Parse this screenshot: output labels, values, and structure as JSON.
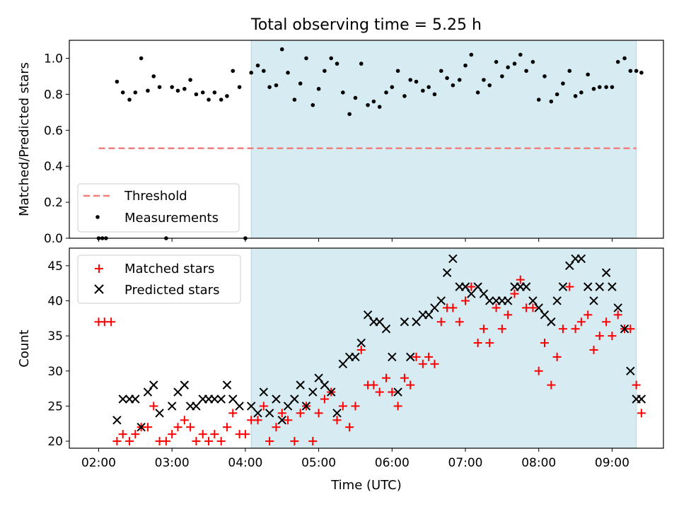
{
  "chart_data": [
    {
      "type": "scatter",
      "title": "Total observing time = 5.25 h",
      "xlabel": "",
      "ylabel": "Matched/Predicted stars",
      "xlim": [
        1.6,
        9.7
      ],
      "ylim": [
        0,
        1.1
      ],
      "y_ticks": [
        0.0,
        0.2,
        0.4,
        0.6,
        0.8,
        1.0
      ],
      "y_tick_labels": [
        "0.0",
        "0.2",
        "0.4",
        "0.6",
        "0.8",
        "1.0"
      ],
      "shaded_interval": [
        4.08,
        9.33
      ],
      "threshold": {
        "label": "Threshold",
        "value": 0.5,
        "x": [
          2.0,
          9.33
        ],
        "color": "#f08080"
      },
      "series": [
        {
          "name": "Measurements",
          "color": "#000000",
          "x": [
            2.0,
            2.05,
            2.1,
            2.25,
            2.33,
            2.42,
            2.5,
            2.58,
            2.67,
            2.75,
            2.83,
            2.92,
            3.0,
            3.08,
            3.17,
            3.25,
            3.33,
            3.42,
            3.5,
            3.58,
            3.67,
            3.75,
            3.83,
            3.92,
            4.0,
            4.08,
            4.17,
            4.25,
            4.33,
            4.42,
            4.5,
            4.58,
            4.67,
            4.75,
            4.83,
            4.92,
            5.0,
            5.08,
            5.17,
            5.25,
            5.33,
            5.42,
            5.5,
            5.58,
            5.67,
            5.75,
            5.83,
            5.92,
            6.0,
            6.08,
            6.17,
            6.25,
            6.33,
            6.42,
            6.5,
            6.58,
            6.67,
            6.75,
            6.83,
            6.92,
            7.0,
            7.08,
            7.17,
            7.25,
            7.33,
            7.42,
            7.5,
            7.58,
            7.67,
            7.75,
            7.83,
            7.92,
            8.0,
            8.08,
            8.17,
            8.25,
            8.33,
            8.42,
            8.5,
            8.58,
            8.67,
            8.75,
            8.83,
            8.92,
            9.0,
            9.08,
            9.17,
            9.25,
            9.33,
            9.4
          ],
          "y": [
            0.0,
            0.0,
            0.0,
            0.87,
            0.81,
            0.77,
            0.81,
            1.0,
            0.82,
            0.9,
            0.84,
            0.0,
            0.84,
            0.82,
            0.83,
            0.88,
            0.8,
            0.81,
            0.77,
            0.81,
            0.77,
            0.79,
            0.93,
            0.84,
            0.0,
            0.92,
            0.96,
            0.93,
            0.84,
            0.85,
            1.05,
            0.92,
            0.77,
            0.86,
            1.0,
            0.74,
            0.83,
            0.93,
            1.0,
            0.97,
            0.81,
            0.69,
            0.78,
            0.97,
            0.74,
            0.76,
            0.73,
            0.81,
            0.84,
            0.93,
            0.79,
            0.88,
            0.87,
            0.82,
            0.84,
            0.8,
            0.93,
            0.89,
            0.85,
            0.88,
            0.96,
            1.02,
            0.81,
            0.88,
            0.85,
            0.98,
            0.9,
            0.95,
            0.97,
            1.02,
            0.93,
            0.98,
            0.77,
            0.9,
            0.76,
            0.8,
            0.86,
            0.93,
            0.79,
            0.81,
            0.91,
            0.83,
            0.84,
            0.84,
            0.84,
            0.98,
            1.0,
            0.93,
            0.93,
            0.92
          ]
        }
      ],
      "legend": "lower-left"
    },
    {
      "type": "scatter",
      "xlabel": "Time (UTC)",
      "ylabel": "Count",
      "xlim": [
        1.6,
        9.7
      ],
      "ylim": [
        19,
        47.5
      ],
      "y_ticks": [
        20,
        25,
        30,
        35,
        40,
        45
      ],
      "y_tick_labels": [
        "20",
        "25",
        "30",
        "35",
        "40",
        "45"
      ],
      "x_ticks": [
        2,
        3,
        4,
        5,
        6,
        7,
        8,
        9
      ],
      "x_tick_labels": [
        "02:00",
        "03:00",
        "04:00",
        "05:00",
        "06:00",
        "07:00",
        "08:00",
        "09:00"
      ],
      "shaded_interval": [
        4.08,
        9.33
      ],
      "series": [
        {
          "name": "Matched stars",
          "marker": "plus",
          "color": "#ff0000",
          "x": [
            2.0,
            2.08,
            2.17,
            2.25,
            2.33,
            2.42,
            2.5,
            2.58,
            2.67,
            2.75,
            2.83,
            2.92,
            3.0,
            3.08,
            3.17,
            3.25,
            3.33,
            3.42,
            3.5,
            3.58,
            3.67,
            3.75,
            3.83,
            3.92,
            4.0,
            4.08,
            4.17,
            4.25,
            4.33,
            4.42,
            4.5,
            4.58,
            4.67,
            4.75,
            4.83,
            4.92,
            5.0,
            5.08,
            5.17,
            5.25,
            5.33,
            5.42,
            5.5,
            5.58,
            5.67,
            5.75,
            5.83,
            5.92,
            6.0,
            6.08,
            6.17,
            6.25,
            6.33,
            6.42,
            6.5,
            6.58,
            6.67,
            6.75,
            6.83,
            6.92,
            7.0,
            7.08,
            7.17,
            7.25,
            7.33,
            7.42,
            7.5,
            7.58,
            7.67,
            7.75,
            7.83,
            7.92,
            8.0,
            8.08,
            8.17,
            8.25,
            8.33,
            8.42,
            8.5,
            8.58,
            8.67,
            8.75,
            8.83,
            8.92,
            9.0,
            9.08,
            9.17,
            9.25,
            9.33,
            9.4
          ],
          "y": [
            37,
            37,
            37,
            20,
            21,
            20,
            21,
            22,
            22,
            25,
            20,
            20,
            21,
            22,
            23,
            22,
            20,
            21,
            20,
            21,
            20,
            22,
            24,
            21,
            21,
            23,
            23,
            25,
            20,
            22,
            24,
            23,
            20,
            24,
            25,
            20,
            24,
            26,
            27,
            23,
            25,
            22,
            25,
            33,
            28,
            28,
            27,
            29,
            27,
            25,
            29,
            28,
            32,
            31,
            32,
            31,
            37,
            39,
            39,
            37,
            40,
            42,
            34,
            36,
            34,
            39,
            36,
            38,
            41,
            43,
            39,
            39,
            30,
            34,
            28,
            32,
            36,
            42,
            36,
            37,
            38,
            33,
            35,
            37,
            35,
            38,
            36,
            36,
            28,
            24
          ]
        },
        {
          "name": "Predicted stars",
          "marker": "x",
          "color": "#000000",
          "x": [
            2.25,
            2.33,
            2.42,
            2.5,
            2.58,
            2.67,
            2.75,
            2.83,
            3.0,
            3.08,
            3.17,
            3.25,
            3.33,
            3.42,
            3.5,
            3.58,
            3.67,
            3.75,
            3.83,
            3.92,
            4.08,
            4.17,
            4.25,
            4.33,
            4.42,
            4.5,
            4.58,
            4.67,
            4.75,
            4.83,
            4.92,
            5.0,
            5.08,
            5.17,
            5.25,
            5.33,
            5.42,
            5.5,
            5.58,
            5.67,
            5.75,
            5.83,
            5.92,
            6.0,
            6.08,
            6.17,
            6.25,
            6.33,
            6.42,
            6.5,
            6.58,
            6.67,
            6.75,
            6.83,
            6.92,
            7.0,
            7.08,
            7.17,
            7.25,
            7.33,
            7.42,
            7.5,
            7.58,
            7.67,
            7.75,
            7.83,
            7.92,
            8.0,
            8.08,
            8.17,
            8.25,
            8.33,
            8.42,
            8.5,
            8.58,
            8.67,
            8.75,
            8.83,
            8.92,
            9.0,
            9.08,
            9.17,
            9.25,
            9.33,
            9.4
          ],
          "y": [
            23,
            26,
            26,
            26,
            22,
            27,
            28,
            24,
            25,
            27,
            28,
            25,
            25,
            26,
            26,
            26,
            26,
            28,
            26,
            25,
            25,
            24,
            27,
            24,
            26,
            23,
            25,
            26,
            28,
            25,
            27,
            29,
            28,
            27,
            24,
            31,
            32,
            32,
            34,
            38,
            37,
            37,
            36,
            32,
            27,
            37,
            32,
            37,
            38,
            38,
            39,
            40,
            44,
            46,
            42,
            42,
            41,
            42,
            41,
            40,
            40,
            40,
            40,
            42,
            42,
            42,
            40,
            39,
            38,
            37,
            40,
            42,
            45,
            46,
            46,
            42,
            40,
            42,
            44,
            42,
            39,
            36,
            30,
            26,
            26
          ]
        }
      ],
      "legend": "top-left"
    }
  ]
}
